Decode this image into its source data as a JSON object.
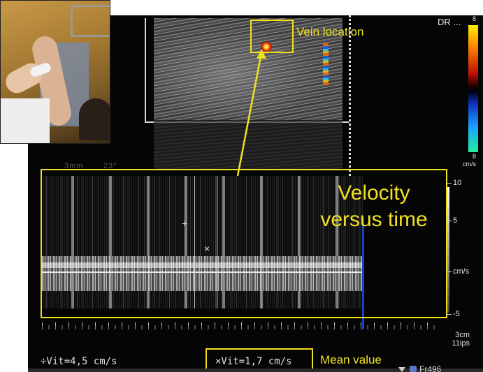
{
  "annotations": {
    "vein_location": "Vein location",
    "velocity_line1": "Velocity",
    "velocity_line2": "versus time",
    "mean_value": "Mean value"
  },
  "header": {
    "dr_label": "DR ..."
  },
  "color_scale": {
    "top_value": "8",
    "bottom_value": "8",
    "unit": "cm/s"
  },
  "velocity_scale": {
    "labels": [
      "10",
      "5",
      "cm/s",
      "-5"
    ]
  },
  "readouts": {
    "vit_left": "÷Vit=4,5 cm/s",
    "vit_right": "×Vit=1,7 cm/s",
    "depth": "3cm",
    "ips": "11ips",
    "frame": "Fr496"
  },
  "faded": {
    "left": "3mm",
    "right": "23°"
  },
  "colors": {
    "annotation_yellow": "#f0e020",
    "text_light": "#e0e0e0"
  }
}
